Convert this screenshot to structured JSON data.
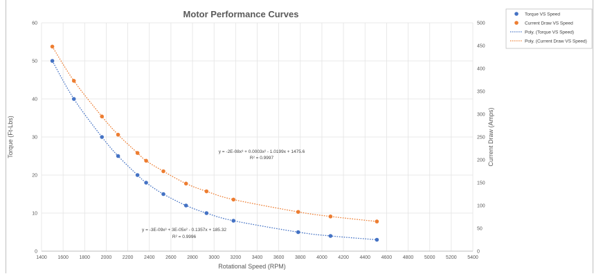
{
  "chart_data": {
    "type": "scatter",
    "title": "Motor Performance Curves",
    "xlabel": "Rotational Speed (RPM)",
    "ylabel": "Torque (Ft-Lbs)",
    "y2label": "Current Draw (Amps)",
    "xlim": [
      1400,
      5400
    ],
    "xticks": [
      1400,
      1600,
      1800,
      2000,
      2200,
      2400,
      2600,
      2800,
      3000,
      3200,
      3400,
      3600,
      3800,
      4000,
      4200,
      4400,
      4600,
      4800,
      5000,
      5200,
      5400
    ],
    "ylim": [
      0,
      60
    ],
    "yticks": [
      0,
      10,
      20,
      30,
      40,
      50,
      60
    ],
    "y2lim": [
      0,
      500
    ],
    "y2ticks": [
      0,
      50,
      100,
      150,
      200,
      250,
      300,
      350,
      400,
      450,
      500
    ],
    "grid": true,
    "legend_position": "top-right",
    "series": [
      {
        "name": "Torque VS Speed",
        "axis": "left",
        "color": "#4472c4",
        "x": [
          1500,
          1700,
          1960,
          2110,
          2290,
          2370,
          2530,
          2740,
          2930,
          3180,
          3780,
          4080,
          4510
        ],
        "y": [
          50,
          40,
          30,
          25,
          20,
          18,
          15,
          12,
          10,
          8,
          5,
          4,
          3
        ]
      },
      {
        "name": "Current Draw VS Speed",
        "axis": "right",
        "color": "#ed7d31",
        "x": [
          1500,
          1700,
          1960,
          2110,
          2290,
          2370,
          2530,
          2740,
          2930,
          3180,
          3780,
          4080,
          4510
        ],
        "y": [
          448,
          373,
          295,
          255,
          215,
          198,
          175,
          148,
          131,
          113,
          86,
          76,
          65
        ]
      }
    ],
    "trendlines": [
      {
        "name": "Poly. (Torque VS Speed)",
        "color": "#4472c4",
        "equation": "y = -3E-09x³ + 3E-05x² - 0.1357x + 185.32",
        "r2": "R² = 0.9996"
      },
      {
        "name": "Poly. (Current Draw VS Speed)",
        "color": "#ed7d31",
        "equation": "y = -2E-08x³ + 0.0003x² - 1.0199x + 1475.6",
        "r2": "R² = 0.9997"
      }
    ]
  }
}
